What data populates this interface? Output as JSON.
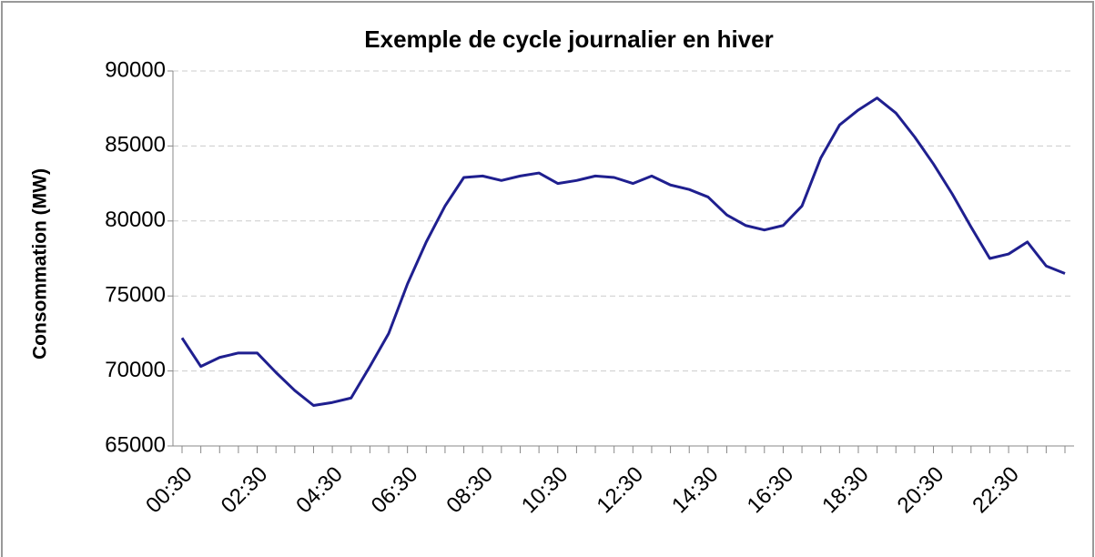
{
  "chart_data": {
    "type": "line",
    "title": "Exemple de cycle journalier en hiver",
    "y_label": "Consommation (MW)",
    "categories": [
      "00:30",
      null,
      null,
      null,
      "02:30",
      null,
      null,
      null,
      "04:30",
      null,
      null,
      null,
      "06:30",
      null,
      null,
      null,
      "08:30",
      null,
      null,
      null,
      "10:30",
      null,
      null,
      null,
      "12:30",
      null,
      null,
      null,
      "14:30",
      null,
      null,
      null,
      "16:30",
      null,
      null,
      null,
      "18:30",
      null,
      null,
      null,
      "20:30",
      null,
      null,
      null,
      "22:30",
      null,
      null,
      null
    ],
    "series": [
      {
        "name": "Consommation",
        "color": "#1f1f8f",
        "values": [
          72200,
          70300,
          70900,
          71200,
          71200,
          69900,
          68700,
          67700,
          67900,
          68200,
          70300,
          72500,
          75800,
          78600,
          81000,
          82900,
          83000,
          82700,
          83000,
          83200,
          82500,
          82700,
          83000,
          82900,
          82500,
          83000,
          82400,
          82100,
          81600,
          80400,
          79700,
          79400,
          79700,
          81000,
          84200,
          86400,
          87400,
          88200,
          87200,
          85600,
          83800,
          81800,
          79600,
          77500,
          77800,
          78600,
          77000,
          76500
        ]
      }
    ],
    "ylim": [
      65000,
      90000
    ],
    "yticks": [
      65000,
      70000,
      75000,
      80000,
      85000,
      90000
    ],
    "grid": true
  }
}
